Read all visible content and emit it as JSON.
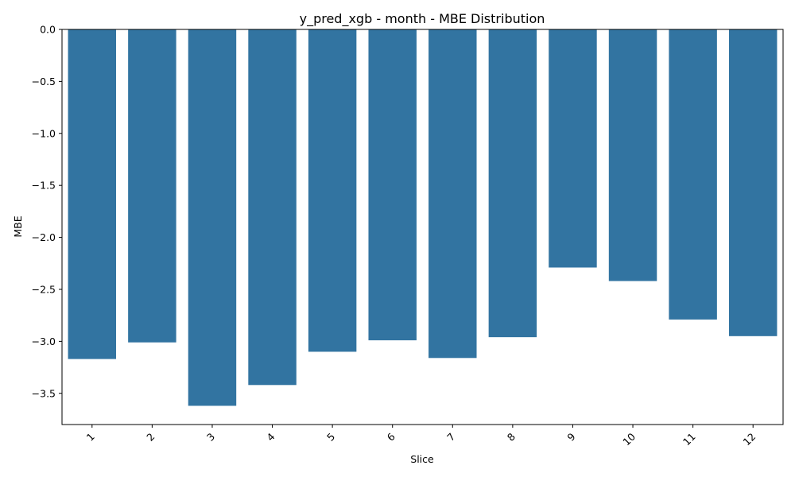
{
  "chart_data": {
    "type": "bar",
    "title": "y_pred_xgb - month - MBE Distribution",
    "xlabel": "Slice",
    "ylabel": "MBE",
    "categories": [
      "1",
      "2",
      "3",
      "4",
      "5",
      "6",
      "7",
      "8",
      "9",
      "10",
      "11",
      "12"
    ],
    "values": [
      -3.17,
      -3.01,
      -3.62,
      -3.42,
      -3.1,
      -2.99,
      -3.16,
      -2.96,
      -2.29,
      -2.42,
      -2.79,
      -2.95
    ],
    "ylim": [
      -3.8,
      0.0
    ],
    "yticks": [
      0.0,
      -0.5,
      -1.0,
      -1.5,
      -2.0,
      -2.5,
      -3.0,
      -3.5
    ],
    "ytick_labels": [
      "0.0",
      "−0.5",
      "−1.0",
      "−1.5",
      "−2.0",
      "−2.5",
      "−3.0",
      "−3.5"
    ],
    "grid": false,
    "bar_color": "#3274a1",
    "x_tick_rotation": 45
  }
}
